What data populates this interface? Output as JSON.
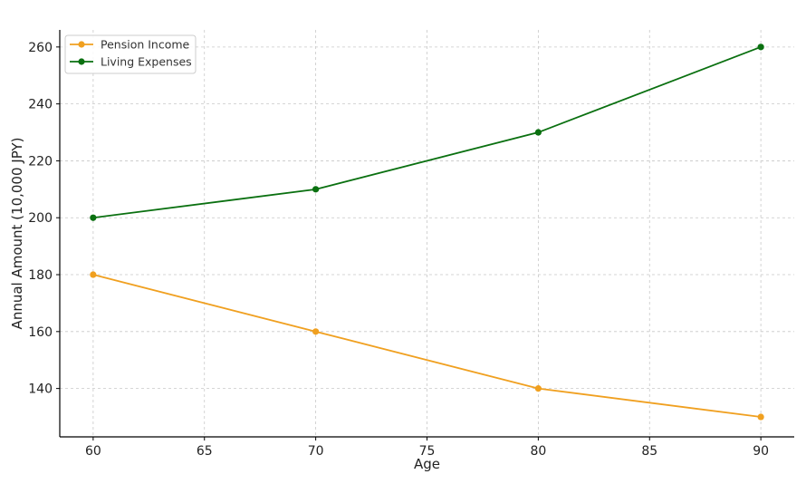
{
  "chart_data": {
    "type": "line",
    "title": "",
    "xlabel": "Age",
    "ylabel": "Annual Amount (10,000 JPY)",
    "x": [
      60,
      70,
      80,
      90
    ],
    "xlim": [
      58.5,
      91.5
    ],
    "ylim": [
      123,
      266
    ],
    "xticks": [
      60,
      65,
      70,
      75,
      80,
      85,
      90
    ],
    "yticks": [
      140,
      160,
      180,
      200,
      220,
      240,
      260
    ],
    "grid": true,
    "legend_position": "top-left",
    "series": [
      {
        "name": "Pension Income",
        "values": [
          180,
          160,
          140,
          130
        ],
        "color": "#f0a020",
        "marker": "circle"
      },
      {
        "name": "Living Expenses",
        "values": [
          200,
          210,
          230,
          260
        ],
        "color": "#0a7010",
        "marker": "circle"
      }
    ]
  }
}
